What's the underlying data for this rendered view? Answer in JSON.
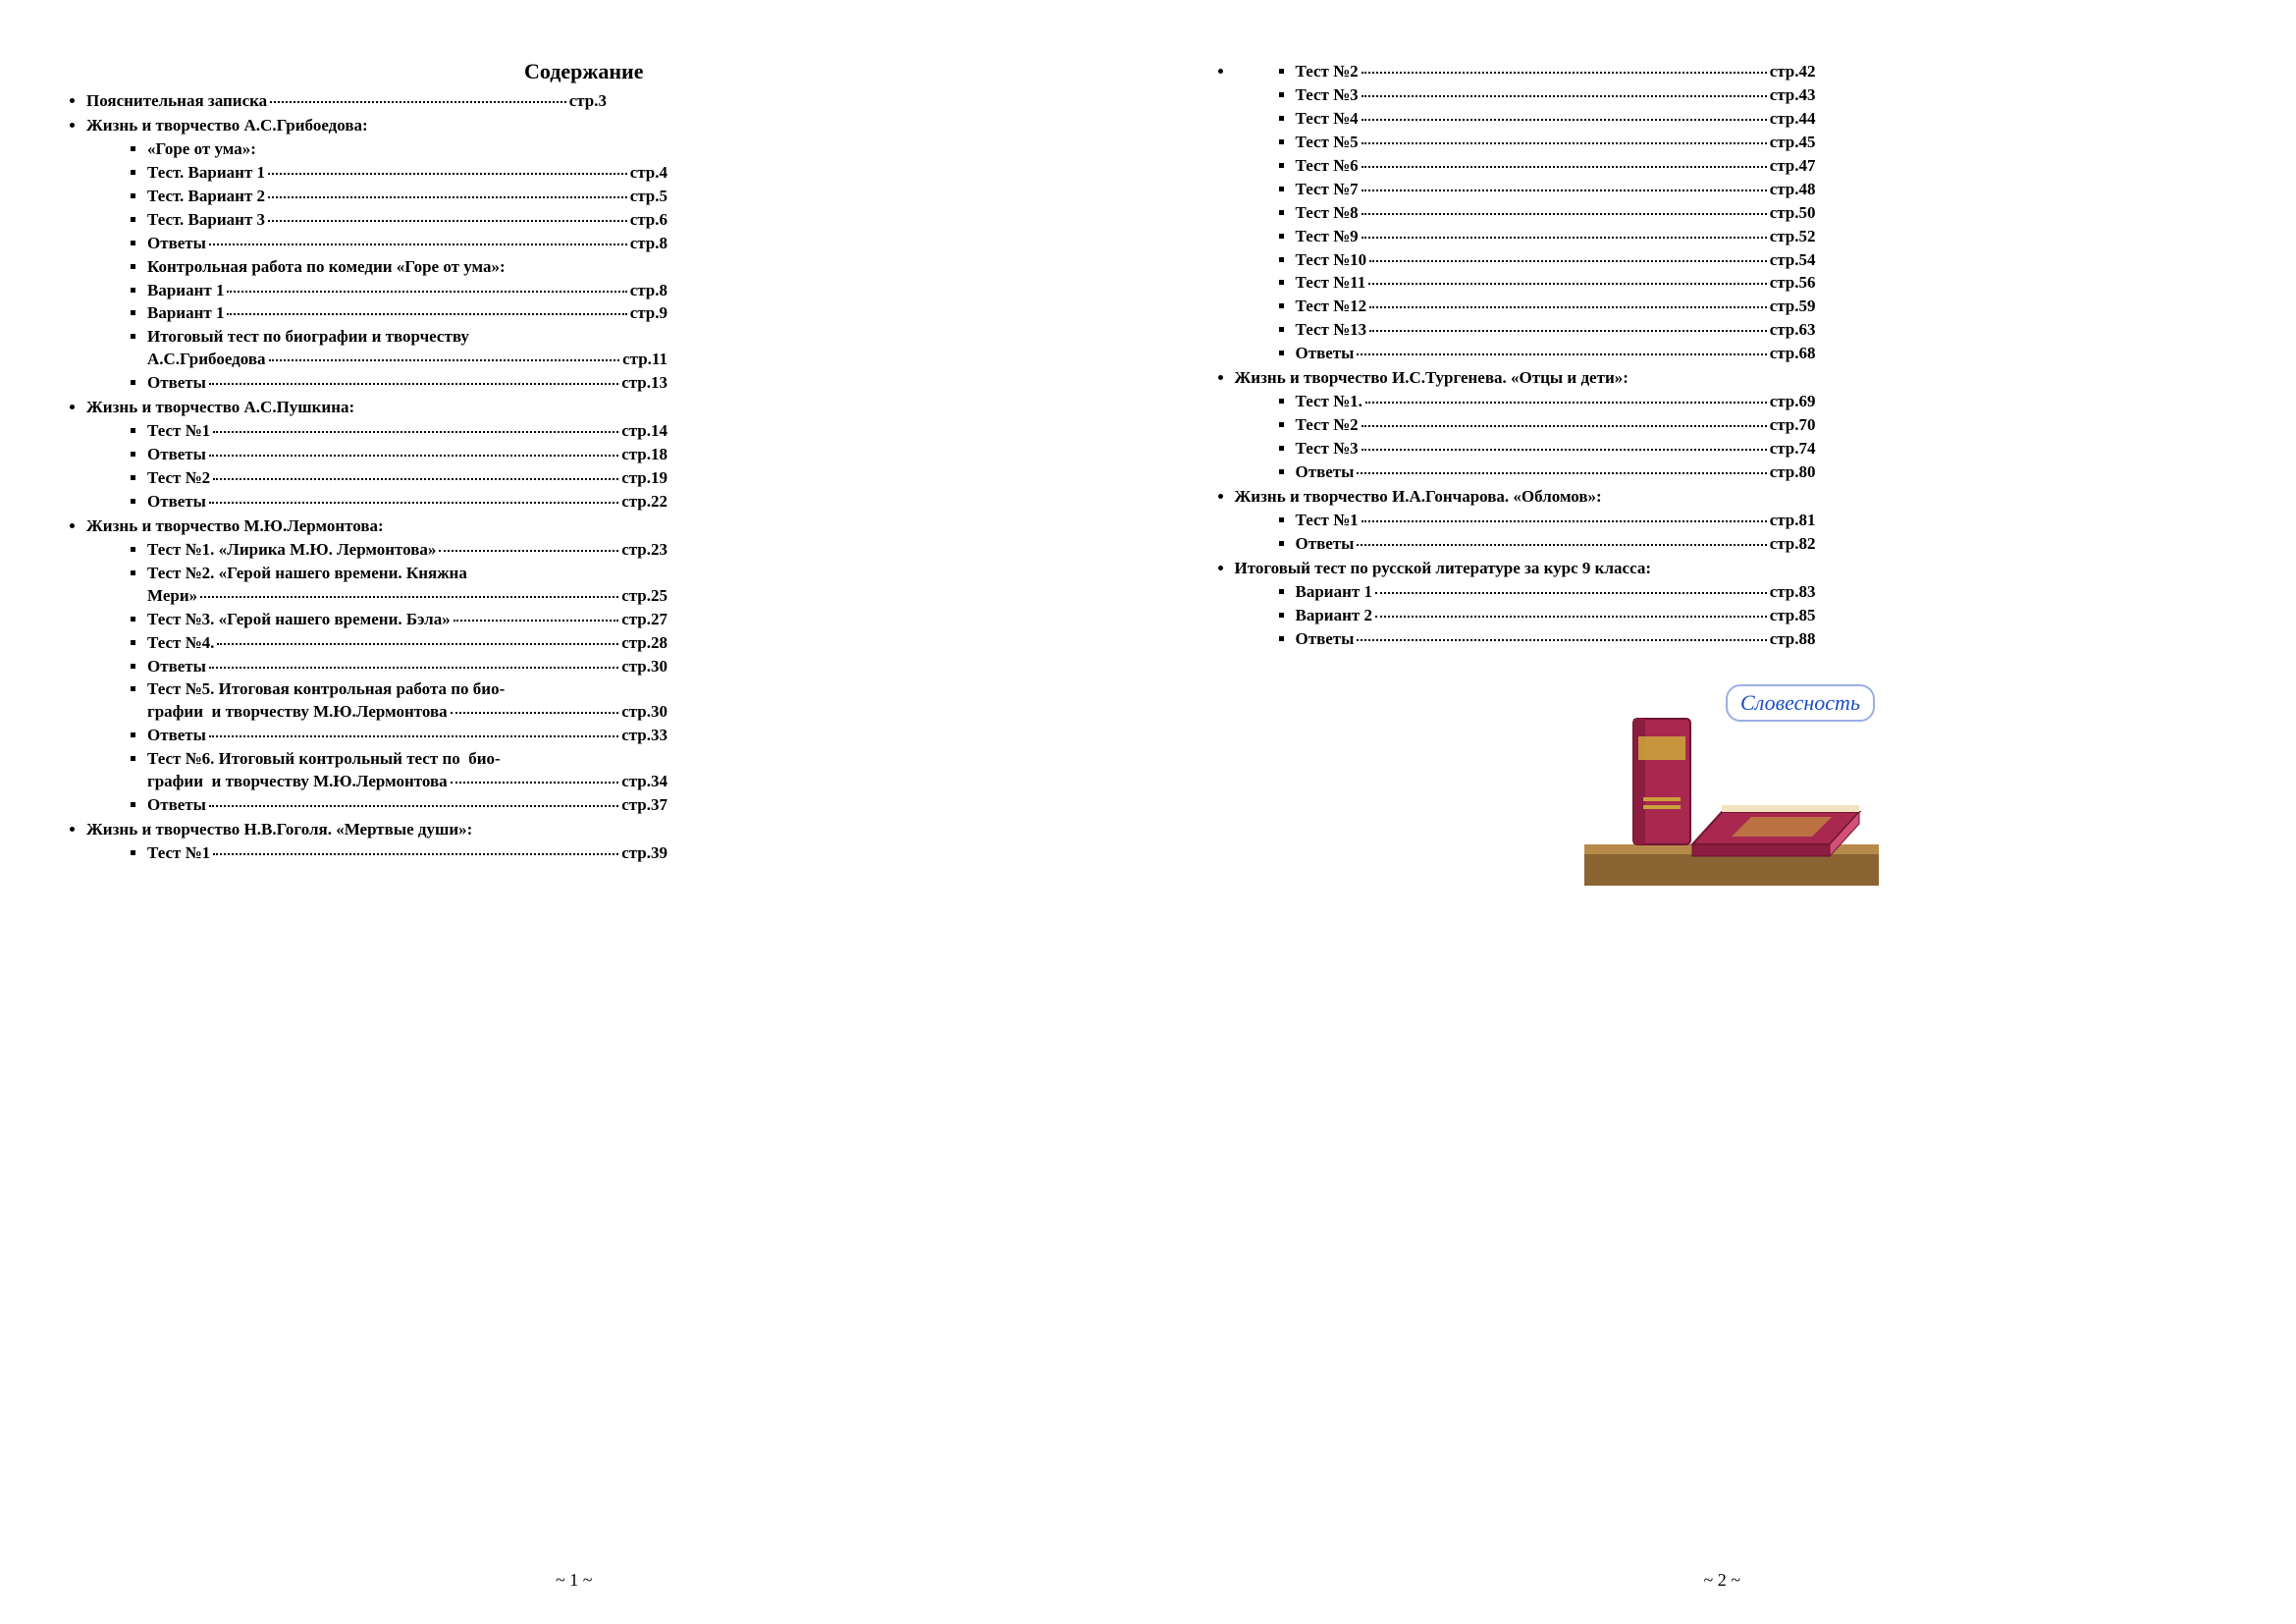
{
  "document": {
    "title": "Содержание",
    "pageNumbers": {
      "left": "~ 1 ~",
      "right": "~ 2 ~"
    },
    "illustration": {
      "label": "Словесность",
      "labelColor": "#1a4fc4",
      "bookColor": "#a8284f",
      "bookHighlight": "#d45079",
      "bookGold": "#c9a13a",
      "shelfColor": "#b88a4a"
    }
  },
  "left": {
    "sections": [
      {
        "type": "top-row",
        "label": "Пояснительная записка",
        "page": "стр.3"
      },
      {
        "type": "top-head",
        "label": "Жизнь и творчество А.С.Грибоедова:"
      },
      {
        "type": "sub-head",
        "label": "«Горе от ума»:"
      },
      {
        "type": "sub-row",
        "label": "Тест. Вариант 1",
        "page": "стр.4"
      },
      {
        "type": "sub-row",
        "label": "Тест. Вариант 2",
        "page": "стр.5"
      },
      {
        "type": "sub-row",
        "label": "Тест. Вариант 3",
        "page": "стр.6"
      },
      {
        "type": "sub-row",
        "label": "Ответы",
        "page": "стр.8"
      },
      {
        "type": "sub-head",
        "label": "Контрольная работа по комедии «Горе от ума»:"
      },
      {
        "type": "sub-row",
        "label": "Вариант 1",
        "page": "стр.8"
      },
      {
        "type": "sub-row",
        "label": "Вариант 1",
        "page": "стр.9"
      },
      {
        "type": "sub-wrap",
        "line1": "Итоговый тест по биографии и творчеству",
        "line2": "А.С.Грибоедова",
        "page": "стр.11"
      },
      {
        "type": "sub-row",
        "label": "Ответы",
        "page": "стр.13"
      },
      {
        "type": "top-head",
        "label": "Жизнь и творчество А.С.Пушкина:"
      },
      {
        "type": "sub-row",
        "label": "Тест №1",
        "page": "стр.14"
      },
      {
        "type": "sub-row",
        "label": "Ответы",
        "page": "стр.18"
      },
      {
        "type": "sub-row",
        "label": "Тест №2",
        "page": "стр.19"
      },
      {
        "type": "sub-row",
        "label": "Ответы",
        "page": "стр.22"
      },
      {
        "type": "top-head",
        "label": "Жизнь и творчество М.Ю.Лермонтова:"
      },
      {
        "type": "sub-row",
        "label": "Тест №1. «Лирика М.Ю. Лермонтова»",
        "page": "стр.23"
      },
      {
        "type": "sub-wrap",
        "line1": "Тест №2. «Герой нашего времени. Княжна",
        "line2": "Мери»",
        "page": "стр.25"
      },
      {
        "type": "sub-row",
        "label": "Тест №3. «Герой нашего времени. Бэла»",
        "page": "стр.27"
      },
      {
        "type": "sub-row",
        "label": "Тест №4.",
        "page": "стр.28"
      },
      {
        "type": "sub-row",
        "label": "Ответы",
        "page": "стр.30"
      },
      {
        "type": "sub-wrap",
        "line1": "Тест №5. Итоговая контрольная работа по био-",
        "line2": "графии  и творчеству М.Ю.Лермонтова",
        "page": "стр.30"
      },
      {
        "type": "sub-row",
        "label": "Ответы",
        "page": "стр.33"
      },
      {
        "type": "sub-wrap",
        "line1": "Тест №6. Итоговый контрольный тест по  био-",
        "line2": "графии  и творчеству М.Ю.Лермонтова",
        "page": "стр.34"
      },
      {
        "type": "sub-row",
        "label": "Ответы",
        "page": "стр.37"
      },
      {
        "type": "top-head",
        "label": "Жизнь и творчество Н.В.Гоголя. «Мертвые души»:"
      },
      {
        "type": "sub-row",
        "label": "Тест №1",
        "page": "стр.39"
      }
    ]
  },
  "right": {
    "sections": [
      {
        "type": "sub-row",
        "label": "Тест №2",
        "page": "стр.42"
      },
      {
        "type": "sub-row",
        "label": "Тест №3",
        "page": "стр.43"
      },
      {
        "type": "sub-row",
        "label": "Тест №4",
        "page": "стр.44"
      },
      {
        "type": "sub-row",
        "label": "Тест №5",
        "page": "стр.45"
      },
      {
        "type": "sub-row",
        "label": "Тест №6",
        "page": "стр.47"
      },
      {
        "type": "sub-row",
        "label": "Тест №7",
        "page": "стр.48"
      },
      {
        "type": "sub-row",
        "label": "Тест №8",
        "page": "стр.50"
      },
      {
        "type": "sub-row",
        "label": "Тест №9",
        "page": "стр.52"
      },
      {
        "type": "sub-row",
        "label": "Тест №10",
        "page": "стр.54"
      },
      {
        "type": "sub-row",
        "label": "Тест №11",
        "page": "стр.56"
      },
      {
        "type": "sub-row",
        "label": "Тест №12",
        "page": "стр.59"
      },
      {
        "type": "sub-row",
        "label": "Тест №13",
        "page": "стр.63"
      },
      {
        "type": "sub-row",
        "label": "Ответы",
        "page": "стр.68"
      },
      {
        "type": "top-head",
        "label": "Жизнь и творчество И.С.Тургенева. «Отцы и дети»:"
      },
      {
        "type": "sub-row",
        "label": "Тест №1.",
        "page": "стр.69"
      },
      {
        "type": "sub-row",
        "label": "Тест №2",
        "page": "стр.70"
      },
      {
        "type": "sub-row",
        "label": "Тест №3",
        "page": "стр.74"
      },
      {
        "type": "sub-row",
        "label": "Ответы",
        "page": "стр.80"
      },
      {
        "type": "top-head",
        "label": "Жизнь и творчество И.А.Гончарова. «Обломов»:"
      },
      {
        "type": "sub-row",
        "label": "Тест №1",
        "page": "стр.81"
      },
      {
        "type": "sub-row",
        "label": "Ответы",
        "page": "стр.82"
      },
      {
        "type": "top-head",
        "label": "Итоговый тест по русской литературе за курс 9 класса:"
      },
      {
        "type": "sub-row",
        "label": "Вариант 1",
        "page": "стр.83"
      },
      {
        "type": "sub-row",
        "label": "Вариант 2",
        "page": "стр.85"
      },
      {
        "type": "sub-row",
        "label": "Ответы",
        "page": "стр.88"
      }
    ]
  }
}
